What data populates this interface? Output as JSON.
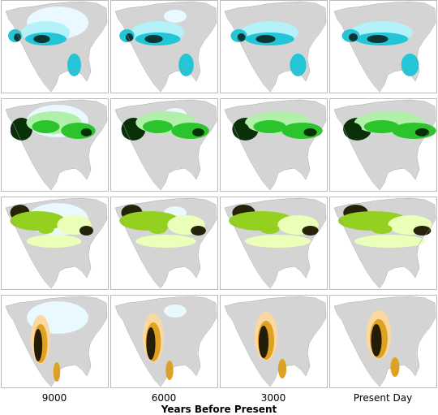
{
  "columns": [
    "9000",
    "6000",
    "3000",
    "Present Day"
  ],
  "axis_label": "Years Before Present"
}
